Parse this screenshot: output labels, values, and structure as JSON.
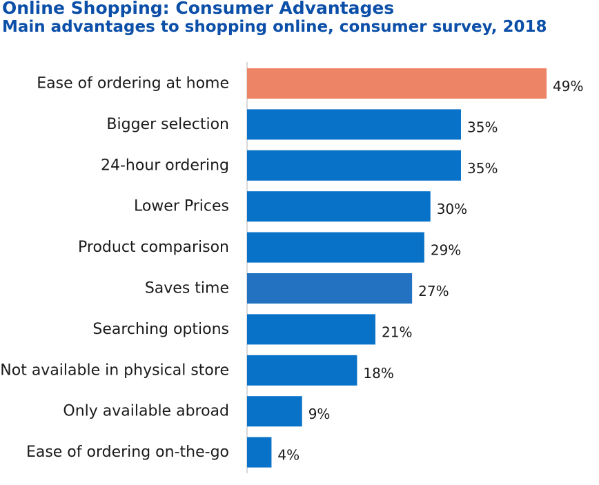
{
  "chart_data": {
    "type": "bar",
    "orientation": "horizontal",
    "title": "Online Shopping: Consumer Advantages",
    "subtitle": "Main advantages to shopping online, consumer survey, 2018",
    "xlabel": "",
    "ylabel": "",
    "xlim": [
      0,
      49
    ],
    "grid": false,
    "legend": "none",
    "value_suffix": "%",
    "categories": [
      "Ease of ordering at home",
      "Bigger selection",
      "24-hour ordering",
      "Lower Prices",
      "Product comparison",
      "Saves time",
      "Searching options",
      "Not available in physical store",
      "Only available abroad",
      "Ease of ordering on-the-go"
    ],
    "values": [
      49,
      35,
      35,
      30,
      29,
      27,
      21,
      18,
      9,
      4
    ],
    "data_labels": [
      "49%",
      "35%",
      "35%",
      "30%",
      "29%",
      "27%",
      "21%",
      "18%",
      "9%",
      "4%"
    ],
    "colors": {
      "highlight": "#ee8466",
      "default": "#0872c8",
      "alt": "#2372c2",
      "axis": "#cccccc",
      "title": "#0b4fa8"
    },
    "bar_colors": [
      "highlight",
      "default",
      "default",
      "default",
      "default",
      "alt",
      "default",
      "default",
      "default",
      "default"
    ]
  }
}
